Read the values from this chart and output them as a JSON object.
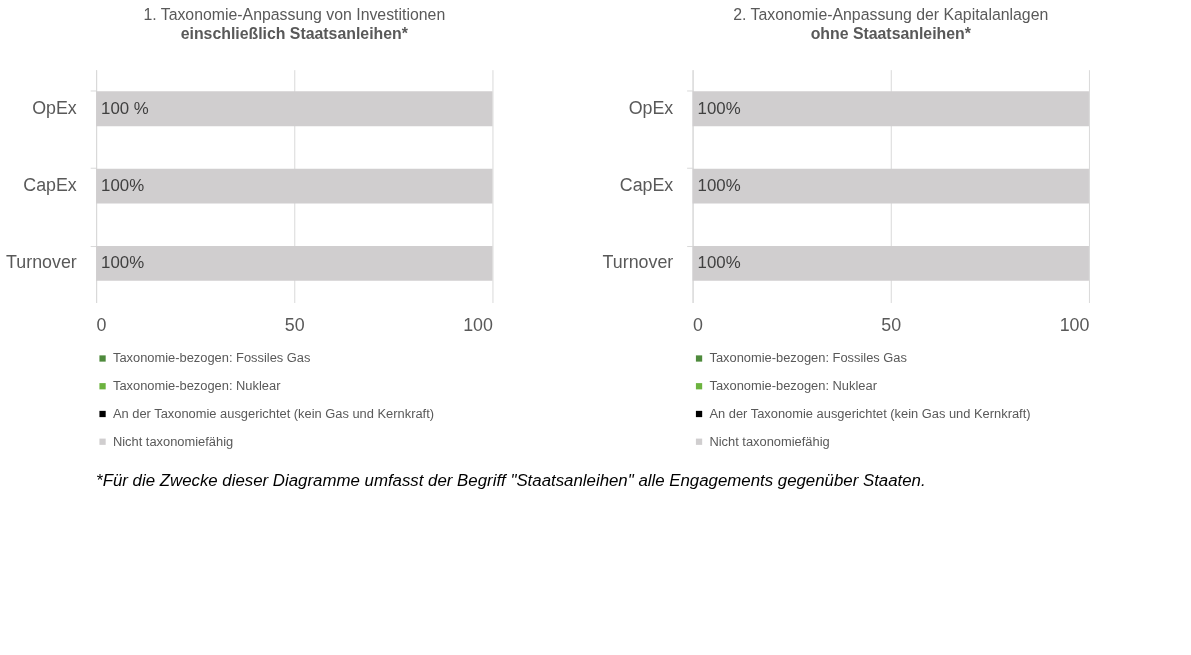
{
  "chart_data": [
    {
      "type": "bar",
      "orientation": "horizontal",
      "title": "1. Taxonomie-Anpassung von Investitionen",
      "subtitle": "einschließlich Staatsanleihen*",
      "categories": [
        "OpEx",
        "CapEx",
        "Turnover"
      ],
      "series": [
        {
          "name": "Taxonomie-bezogen: Fossiles Gas",
          "color": "#4e8a3c",
          "values": [
            0,
            0,
            0
          ]
        },
        {
          "name": "Taxonomie-bezogen: Nuklear",
          "color": "#6cb33f",
          "values": [
            0,
            0,
            0
          ]
        },
        {
          "name": "An der Taxonomie ausgerichtet (kein Gas und Kernkraft)",
          "color": "#000000",
          "values": [
            0,
            0,
            0
          ]
        },
        {
          "name": "Nicht taxonomiefähig",
          "color": "#d0cecf",
          "values": [
            100,
            100,
            100
          ],
          "value_labels": [
            "100 %",
            "100%",
            "100%"
          ]
        }
      ],
      "xlim": [
        0,
        100
      ],
      "xticks": [
        0,
        50,
        100
      ],
      "grid": "x",
      "legend": "bottom",
      "annotations": [
        "*Für die Zwecke dieser Diagramme umfasst der Begriff \"Staatsanleihen\" alle Engagements gegenüber Staaten."
      ]
    },
    {
      "type": "bar",
      "orientation": "horizontal",
      "title": "2.  Taxonomie-Anpassung der Kapitalanlagen",
      "subtitle": "ohne Staatsanleihen*",
      "categories": [
        "OpEx",
        "CapEx",
        "Turnover"
      ],
      "series": [
        {
          "name": "Taxonomie-bezogen: Fossiles Gas",
          "color": "#4e8a3c",
          "values": [
            0,
            0,
            0
          ]
        },
        {
          "name": "Taxonomie-bezogen: Nuklear",
          "color": "#6cb33f",
          "values": [
            0,
            0,
            0
          ]
        },
        {
          "name": "An der Taxonomie ausgerichtet (kein Gas und Kernkraft)",
          "color": "#000000",
          "values": [
            0,
            0,
            0
          ]
        },
        {
          "name": "Nicht taxonomiefähig",
          "color": "#d0cecf",
          "values": [
            100,
            100,
            100
          ],
          "value_labels": [
            "100%",
            "100%",
            "100%"
          ]
        }
      ],
      "xlim": [
        0,
        100
      ],
      "xticks": [
        0,
        50,
        100
      ],
      "grid": "x",
      "legend": "bottom"
    }
  ]
}
